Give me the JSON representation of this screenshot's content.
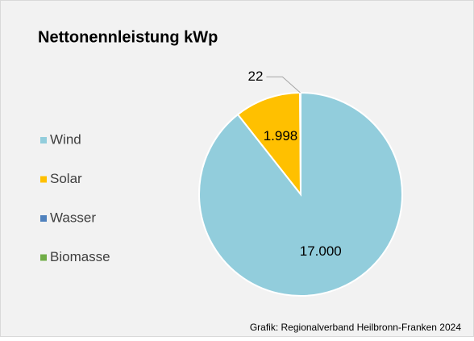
{
  "chart_data": {
    "type": "pie",
    "title": "Nettonennleistung kWp",
    "categories": [
      "Wind",
      "Solar",
      "Wasser",
      "Biomasse"
    ],
    "values": [
      17000,
      1998,
      22,
      0
    ],
    "value_labels": [
      "17.000",
      "1.998",
      "22",
      null
    ],
    "colors": [
      "#92cddc",
      "#ffc000",
      "#4f81bd",
      "#70ad47"
    ],
    "legend": "left",
    "source": "Grafik: Regionalverband Heilbronn-Franken 2024"
  }
}
